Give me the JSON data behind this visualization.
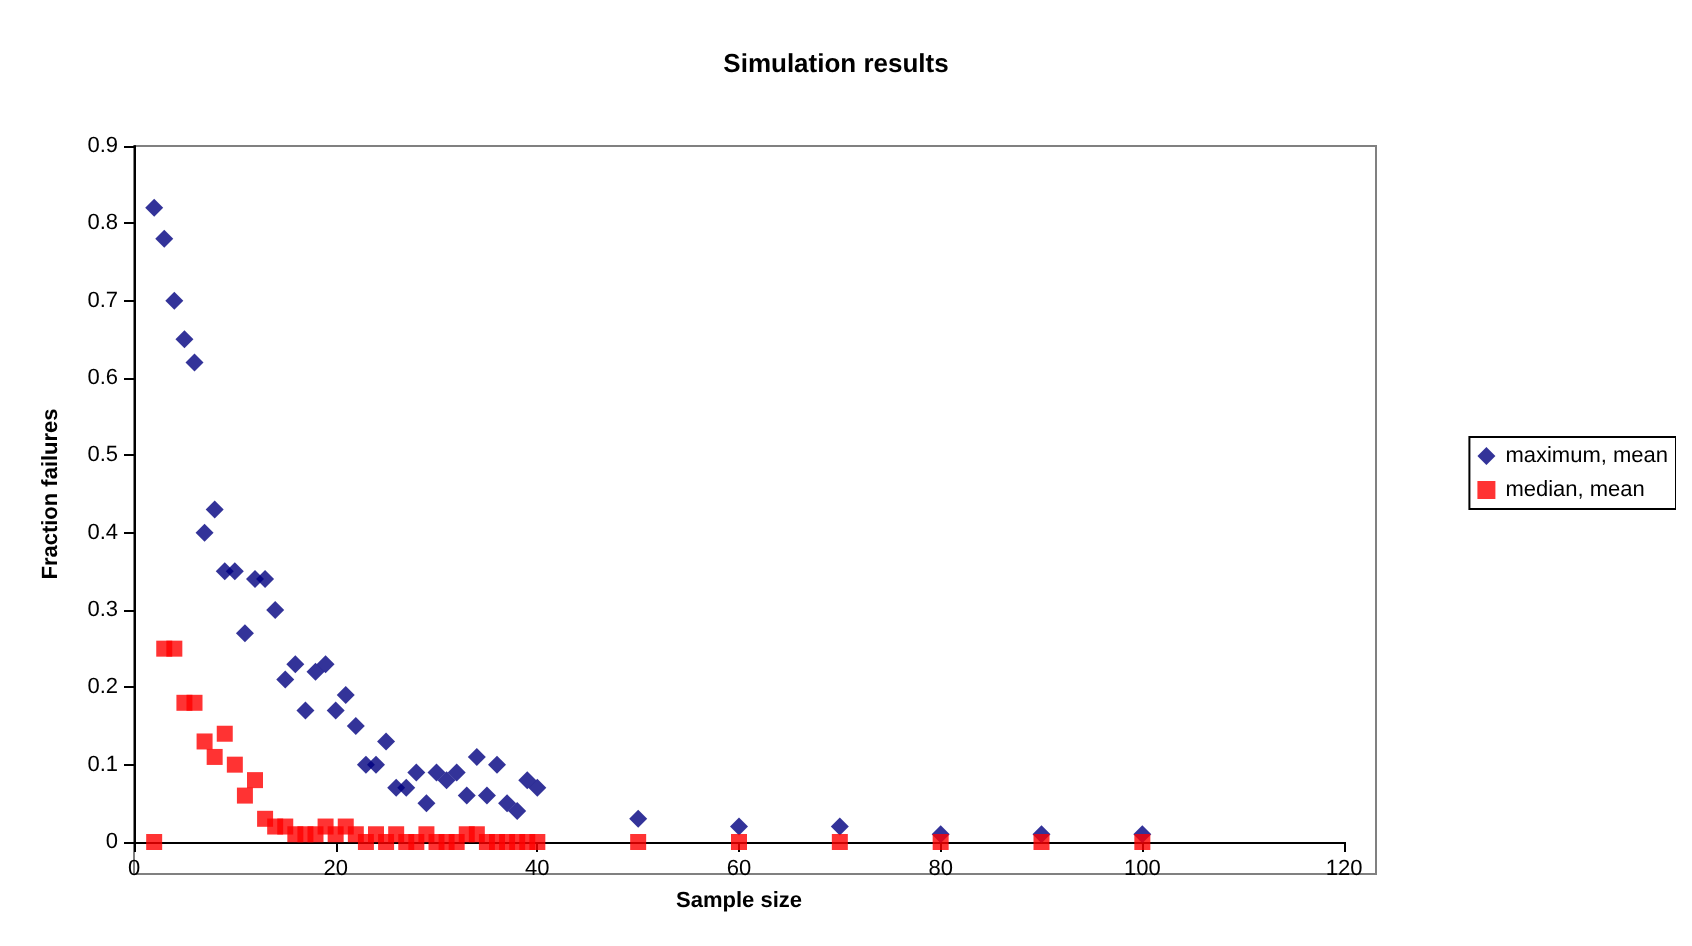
{
  "chart_data": {
    "type": "scatter",
    "title": "Simulation results",
    "xlabel": "Sample size",
    "ylabel": "Fraction failures",
    "xlim": [
      0,
      120
    ],
    "xticks": [
      0,
      20,
      40,
      60,
      80,
      100,
      120
    ],
    "ylim": [
      0,
      0.9
    ],
    "yticks": [
      0,
      0.1,
      0.2,
      0.3,
      0.4,
      0.5,
      0.6,
      0.7,
      0.8,
      0.9
    ],
    "grid": false,
    "legend": "right",
    "x": [
      2,
      3,
      4,
      5,
      6,
      7,
      8,
      9,
      10,
      11,
      12,
      13,
      14,
      15,
      16,
      17,
      18,
      19,
      20,
      21,
      22,
      23,
      24,
      25,
      26,
      27,
      28,
      29,
      30,
      31,
      32,
      33,
      34,
      35,
      36,
      37,
      38,
      39,
      40,
      50,
      60,
      70,
      80,
      90,
      100
    ],
    "series": [
      {
        "name": "maximum, mean",
        "color": "#000080",
        "marker": "diamond",
        "values": [
          0.82,
          0.78,
          0.7,
          0.65,
          0.62,
          0.4,
          0.43,
          0.35,
          0.35,
          0.27,
          0.34,
          0.34,
          0.3,
          0.21,
          0.23,
          0.17,
          0.22,
          0.23,
          0.17,
          0.19,
          0.15,
          0.1,
          0.1,
          0.13,
          0.07,
          0.07,
          0.09,
          0.05,
          0.09,
          0.08,
          0.09,
          0.06,
          0.11,
          0.06,
          0.1,
          0.05,
          0.04,
          0.08,
          0.07,
          0.03,
          0.02,
          0.02,
          0.01,
          0.01,
          0.01
        ]
      },
      {
        "name": "median, mean",
        "color": "#ff0000",
        "marker": "square",
        "values": [
          0,
          0.25,
          0.25,
          0.18,
          0.18,
          0.13,
          0.11,
          0.14,
          0.1,
          0.06,
          0.08,
          0.03,
          0.02,
          0.02,
          0.01,
          0.01,
          0.01,
          0.02,
          0.01,
          0.02,
          0.01,
          0,
          0.01,
          0,
          0.01,
          0,
          0,
          0.01,
          0,
          0,
          0,
          0.01,
          0.01,
          0,
          0,
          0,
          0,
          0,
          0,
          0,
          0,
          0,
          0,
          0,
          0
        ]
      }
    ]
  }
}
